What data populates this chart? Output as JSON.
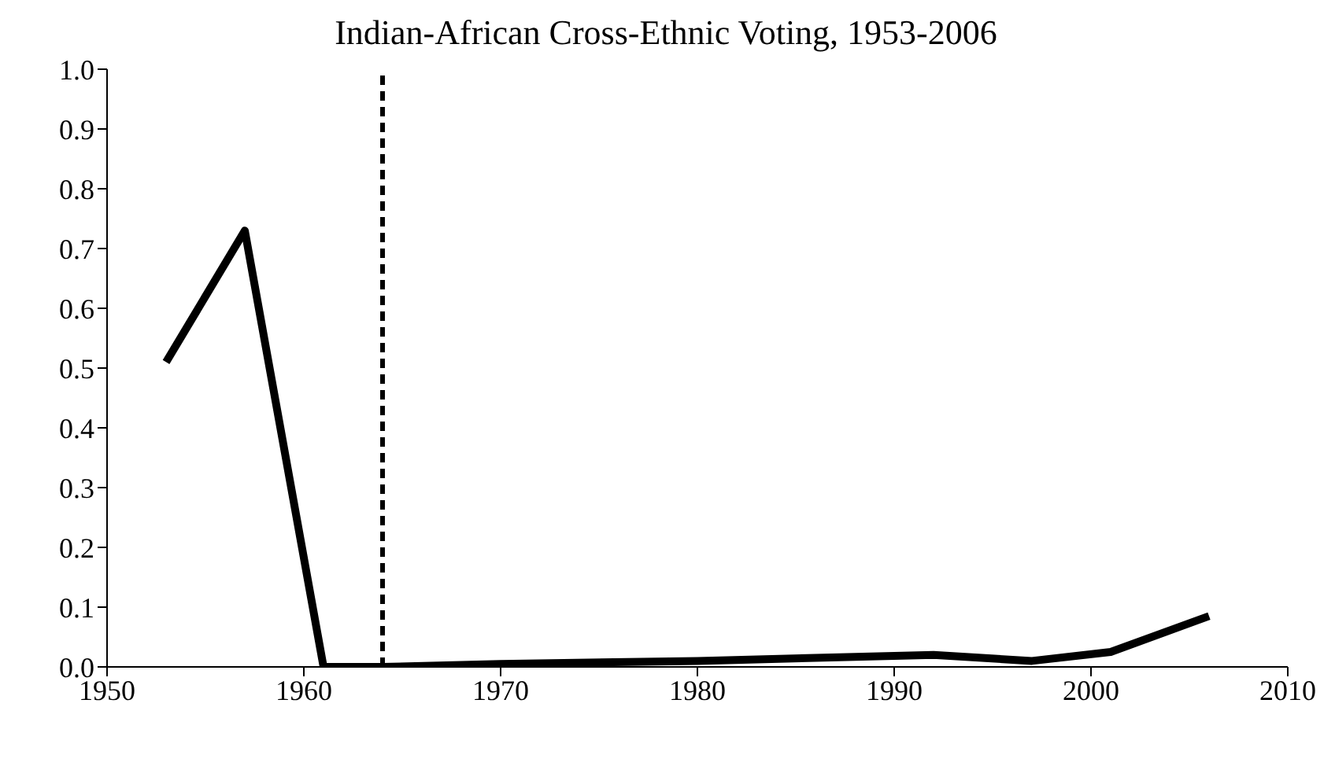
{
  "chart_data": {
    "type": "line",
    "title": "Indian-African Cross-Ethnic Voting, 1953-2006",
    "x": [
      1953,
      1957,
      1961,
      1964,
      1970,
      1980,
      1992,
      1997,
      2001,
      2006
    ],
    "series": [
      {
        "color": "#000000",
        "values": [
          0.51,
          0.73,
          0,
          0,
          0.005,
          0.01,
          0.02,
          0.01,
          0.025,
          0.085
        ]
      }
    ],
    "xlim": [
      1950,
      2010
    ],
    "xticks": [
      1950,
      1960,
      1970,
      1980,
      1990,
      2000,
      2010
    ],
    "ylim": [
      0,
      1
    ],
    "yticks": [
      {
        "value": 0,
        "label": "0.0"
      },
      0.1,
      0.2,
      0.3,
      0.4,
      0.5,
      0.6,
      0.7,
      0.8,
      0.9,
      {
        "value": 1,
        "label": "1.0"
      }
    ],
    "ref_lines": [
      {
        "axis": "x",
        "value": 1964,
        "color": "#000000",
        "line_style": "dashed"
      }
    ],
    "grid": false,
    "legend": false,
    "marker": "none",
    "line_style": "solid"
  }
}
